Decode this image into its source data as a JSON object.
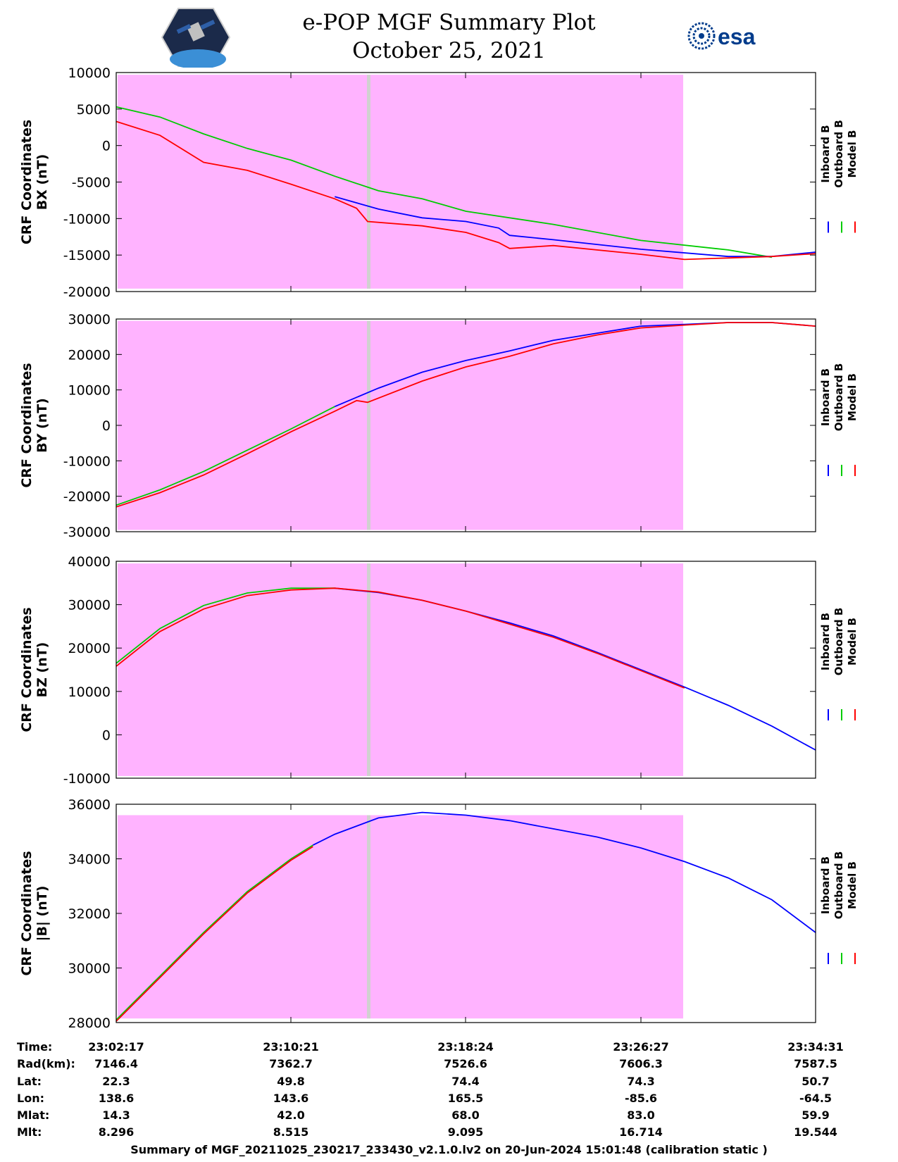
{
  "header": {
    "title_line1": "e-POP MGF Summary Plot",
    "title_line2": "October 25, 2021",
    "logo_left": "cassiope-mission-logo",
    "logo_right_text": "esa"
  },
  "legend": {
    "labels": [
      "Inboard B",
      "Outboard B",
      "Model B"
    ],
    "colors": [
      "#0000ff",
      "#00cc00",
      "#ff0000"
    ]
  },
  "shading": {
    "color": "#ffb3ff",
    "gap_color": "#d0d0d0"
  },
  "chart_data": [
    {
      "type": "line",
      "ylabel_line1": "CRF Coordinates",
      "ylabel_line2": "BX (nT)",
      "ylim": [
        -20000,
        10000
      ],
      "yticks": [
        10000,
        5000,
        0,
        -5000,
        -10000,
        -15000,
        -20000
      ],
      "ytick_labels": [
        "10000",
        "5000",
        "0",
        "-5000",
        "-10000",
        "-15000",
        "-20000"
      ],
      "xlim": [
        0,
        32
      ],
      "x_units": "minutes since 23:02:17",
      "shade_top": 9700,
      "shade_bottom": -19600,
      "series": [
        {
          "name": "Outboard B",
          "color": "#00cc00",
          "x": [
            0,
            2,
            4,
            6,
            8,
            10,
            12,
            14,
            16,
            20,
            24,
            28,
            30
          ],
          "y": [
            5300,
            3900,
            1600,
            -400,
            -2000,
            -4200,
            -6200,
            -7300,
            -9000,
            -10800,
            -13000,
            -14300,
            -15300
          ]
        },
        {
          "name": "Inboard B",
          "color": "#0000ff",
          "x": [
            10,
            12,
            14,
            16,
            17.5,
            18,
            20,
            24,
            28,
            30,
            32
          ],
          "y": [
            -7000,
            -8700,
            -9900,
            -10400,
            -11300,
            -12300,
            -12900,
            -14200,
            -15200,
            -15200,
            -14600
          ]
        },
        {
          "name": "Model B",
          "color": "#ff0000",
          "x": [
            0,
            2,
            4,
            6,
            8,
            10,
            11,
            11.5,
            14,
            16,
            17.5,
            18,
            20,
            24,
            26,
            28,
            30,
            32
          ],
          "y": [
            3300,
            1400,
            -2300,
            -3400,
            -5300,
            -7300,
            -8600,
            -10400,
            -11000,
            -11900,
            -13300,
            -14100,
            -13700,
            -14900,
            -15600,
            -15400,
            -15200,
            -14800
          ]
        }
      ]
    },
    {
      "type": "line",
      "ylabel_line1": "CRF Coordinates",
      "ylabel_line2": "BY (nT)",
      "ylim": [
        -30000,
        30000
      ],
      "yticks": [
        30000,
        20000,
        10000,
        0,
        -10000,
        -20000,
        -30000
      ],
      "ytick_labels": [
        "30000",
        "20000",
        "10000",
        "0",
        "-10000",
        "-20000",
        "-30000"
      ],
      "xlim": [
        0,
        32
      ],
      "x_units": "minutes since 23:02:17",
      "shade_top": 29500,
      "shade_bottom": -29500,
      "series": [
        {
          "name": "Outboard B",
          "color": "#00cc00",
          "x": [
            0,
            2,
            4,
            6,
            8,
            10
          ],
          "y": [
            -22500,
            -18200,
            -13000,
            -7000,
            -1000,
            5300
          ]
        },
        {
          "name": "Inboard B",
          "color": "#0000ff",
          "x": [
            10,
            12,
            14,
            16,
            18,
            20,
            22,
            24,
            26,
            28,
            30,
            32
          ],
          "y": [
            5300,
            10500,
            15000,
            18300,
            21000,
            24000,
            26000,
            28000,
            28500,
            29000,
            29000,
            28000
          ]
        },
        {
          "name": "Model B",
          "color": "#ff0000",
          "x": [
            0,
            2,
            4,
            6,
            8,
            10,
            11,
            11.5,
            14,
            16,
            18,
            20,
            22,
            24,
            26,
            28,
            30,
            32
          ],
          "y": [
            -23000,
            -19000,
            -14000,
            -8000,
            -1800,
            4000,
            7000,
            6500,
            12500,
            16500,
            19500,
            23000,
            25500,
            27500,
            28300,
            29000,
            29000,
            28000
          ]
        }
      ]
    },
    {
      "type": "line",
      "ylabel_line1": "CRF Coordinates",
      "ylabel_line2": "BZ (nT)",
      "ylim": [
        -10000,
        40000
      ],
      "yticks": [
        40000,
        30000,
        20000,
        10000,
        0,
        -10000
      ],
      "ytick_labels": [
        "40000",
        "30000",
        "20000",
        "10000",
        "0",
        "-10000"
      ],
      "xlim": [
        0,
        32
      ],
      "x_units": "minutes since 23:02:17",
      "shade_top": 39500,
      "shade_bottom": -9500,
      "series": [
        {
          "name": "Outboard B",
          "color": "#00cc00",
          "x": [
            0,
            2,
            4,
            6,
            8,
            10
          ],
          "y": [
            16500,
            24500,
            29800,
            32700,
            33800,
            33800
          ]
        },
        {
          "name": "Inboard B",
          "color": "#0000ff",
          "x": [
            10,
            12,
            14,
            16,
            18,
            20,
            22,
            24,
            26,
            28,
            30,
            32
          ],
          "y": [
            33800,
            32800,
            31000,
            28500,
            25800,
            22800,
            19000,
            15000,
            11000,
            6800,
            2000,
            -3500
          ]
        },
        {
          "name": "Model B",
          "color": "#ff0000",
          "x": [
            0,
            2,
            4,
            6,
            8,
            10,
            12,
            14,
            16,
            18,
            20,
            22,
            24,
            26
          ],
          "y": [
            15800,
            23800,
            29000,
            32100,
            33400,
            33800,
            32900,
            31000,
            28500,
            25500,
            22500,
            18800,
            14800,
            10800
          ]
        }
      ]
    },
    {
      "type": "line",
      "ylabel_line1": "CRF Coordinates",
      "ylabel_line2": "|B| (nT)",
      "ylim": [
        28000,
        36000
      ],
      "yticks": [
        36000,
        34000,
        32000,
        30000,
        28000
      ],
      "ytick_labels": [
        "36000",
        "34000",
        "32000",
        "30000",
        "28000"
      ],
      "xlim": [
        0,
        32
      ],
      "x_units": "minutes since 23:02:17",
      "shade_top": 35600,
      "shade_bottom": 28150,
      "series": [
        {
          "name": "Outboard B",
          "color": "#00cc00",
          "x": [
            0,
            2,
            4,
            6,
            8,
            9
          ],
          "y": [
            28100,
            29700,
            31300,
            32800,
            34000,
            34500
          ]
        },
        {
          "name": "Inboard B",
          "color": "#0000ff",
          "x": [
            9,
            10,
            12,
            14,
            16,
            18,
            20,
            22,
            24,
            26,
            28,
            30,
            32
          ],
          "y": [
            34500,
            34900,
            35500,
            35700,
            35600,
            35400,
            35100,
            34800,
            34400,
            33900,
            33300,
            32500,
            31300
          ]
        },
        {
          "name": "Model B",
          "color": "#ff0000",
          "x": [
            0,
            2,
            4,
            6,
            8,
            9
          ],
          "y": [
            28050,
            29650,
            31250,
            32750,
            33950,
            34450
          ]
        }
      ]
    }
  ],
  "time_table": {
    "row_labels": [
      "Time:",
      "Rad(km):",
      "Lat:",
      "Lon:",
      "Mlat:",
      "Mlt:"
    ],
    "columns": [
      [
        "23:02:17",
        "7146.4",
        "22.3",
        "138.6",
        "14.3",
        "8.296"
      ],
      [
        "23:10:21",
        "7362.7",
        "49.8",
        "143.6",
        "42.0",
        "8.515"
      ],
      [
        "23:18:24",
        "7526.6",
        "74.4",
        "165.5",
        "68.0",
        "9.095"
      ],
      [
        "23:26:27",
        "7606.3",
        "74.3",
        "-85.6",
        "83.0",
        "16.714"
      ],
      [
        "23:34:31",
        "7587.5",
        "50.7",
        "-64.5",
        "59.9",
        "19.544"
      ]
    ]
  },
  "footer": "Summary of MGF_20211025_230217_233430_v2.1.0.lv2 on 20-Jun-2024 15:01:48 (calibration static )"
}
